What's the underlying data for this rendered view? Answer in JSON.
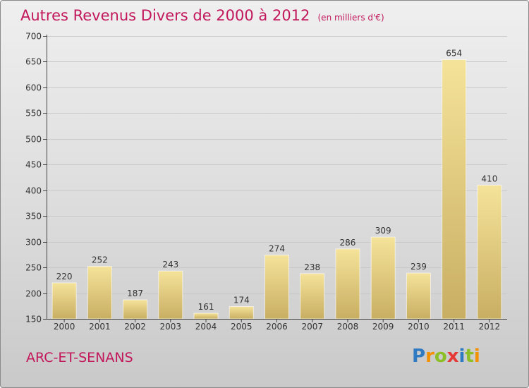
{
  "title": "Autres Revenus Divers de 2000 à 2012",
  "subtitle": "(en milliers d'€)",
  "commune": "ARC-ET-SENANS",
  "logo": {
    "text": "Proxiti",
    "letter_colors": [
      "#2e7bc4",
      "#f39200",
      "#8cbf26",
      "#e53935",
      "#2e7bc4",
      "#8cbf26",
      "#f39200"
    ]
  },
  "colors": {
    "title": "#c2185b",
    "bar_light": "#f5e39a",
    "bar_dark": "#c8ae62",
    "grid": "#c8c8c8",
    "axis": "#444444"
  },
  "chart_data": {
    "type": "bar",
    "title": "Autres Revenus Divers de 2000 à 2012",
    "subtitle": "(en milliers d'€)",
    "categories": [
      "2000",
      "2001",
      "2002",
      "2003",
      "2004",
      "2005",
      "2006",
      "2007",
      "2008",
      "2009",
      "2010",
      "2011",
      "2012"
    ],
    "values": [
      220,
      252,
      187,
      243,
      161,
      174,
      274,
      238,
      286,
      309,
      239,
      654,
      410
    ],
    "ylim": [
      150,
      700
    ],
    "yticks": [
      150,
      200,
      250,
      300,
      350,
      400,
      450,
      500,
      550,
      600,
      650,
      700
    ],
    "grid": true,
    "data_labels": true
  }
}
